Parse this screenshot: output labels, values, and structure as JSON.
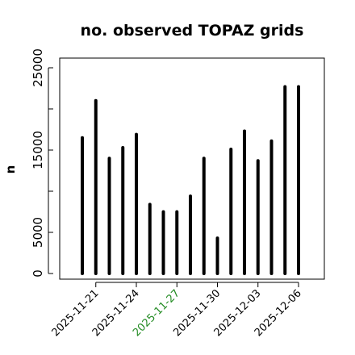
{
  "colors": {
    "bar": "#000000",
    "axis": "#000000",
    "label_default": "#000000",
    "label_highlight": "#228B22"
  },
  "chart_data": {
    "type": "bar",
    "title": "no. observed TOPAZ grids",
    "xlabel": "",
    "ylabel": "n",
    "ylim": [
      0,
      26000
    ],
    "yticks": [
      0,
      5000,
      15000,
      25000
    ],
    "grid": false,
    "x": [
      "2025-11-20",
      "2025-11-21",
      "2025-11-22",
      "2025-11-23",
      "2025-11-24",
      "2025-11-25",
      "2025-11-26",
      "2025-11-27",
      "2025-11-28",
      "2025-11-29",
      "2025-11-30",
      "2025-12-01",
      "2025-12-02",
      "2025-12-03",
      "2025-12-04",
      "2025-12-05",
      "2025-12-06"
    ],
    "values": [
      16500,
      21000,
      14000,
      15300,
      16900,
      8400,
      7500,
      7500,
      9400,
      14000,
      4300,
      15100,
      17300,
      13700,
      16100,
      22700,
      22700
    ],
    "xtick_labels": [
      {
        "date": "2025-11-21",
        "text": "2025-11-21",
        "highlight": false
      },
      {
        "date": "2025-11-24",
        "text": "2025-11-24",
        "highlight": false
      },
      {
        "date": "2025-11-27",
        "text": "2025-11-27",
        "highlight": true
      },
      {
        "date": "2025-11-30",
        "text": "2025-11-30",
        "highlight": false
      },
      {
        "date": "2025-12-03",
        "text": "2025-12-03",
        "highlight": false
      },
      {
        "date": "2025-12-06",
        "text": "2025-12-06",
        "highlight": false
      }
    ]
  }
}
